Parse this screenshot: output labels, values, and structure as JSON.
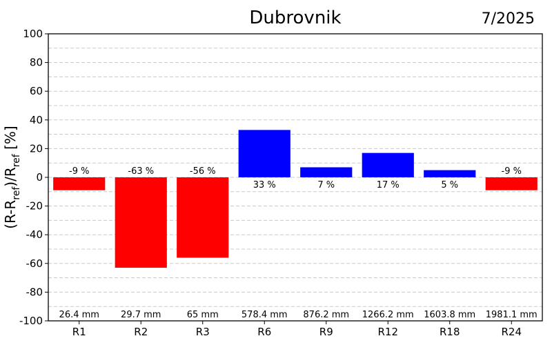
{
  "chart_data": {
    "type": "bar",
    "title": "Dubrovnik",
    "date": "7/2025",
    "ylabel": {
      "main": "(R-R",
      "sub1": "ref",
      "mid": ")/R",
      "sub2": "ref",
      "tail": " [%]"
    },
    "ylim": [
      -100,
      100
    ],
    "y_ticks": [
      100,
      80,
      60,
      40,
      20,
      0,
      -20,
      -40,
      -60,
      -80,
      -100
    ],
    "grid": true,
    "categories": [
      "R1",
      "R2",
      "R3",
      "R6",
      "R9",
      "R12",
      "R18",
      "R24"
    ],
    "values": [
      -9,
      -63,
      -56,
      33,
      7,
      17,
      5,
      -9
    ],
    "value_labels": [
      "-9 %",
      "-63 %",
      "-56 %",
      "33 %",
      "7 %",
      "17 %",
      "5 %",
      "-9 %"
    ],
    "amounts": [
      "26.4 mm",
      "29.7 mm",
      "65 mm",
      "578.4 mm",
      "876.2 mm",
      "1266.2 mm",
      "1603.8 mm",
      "1981.1 mm"
    ],
    "colors": {
      "negative": "#ff0000",
      "positive": "#0000ff",
      "grid": "#c8c8c8"
    }
  }
}
